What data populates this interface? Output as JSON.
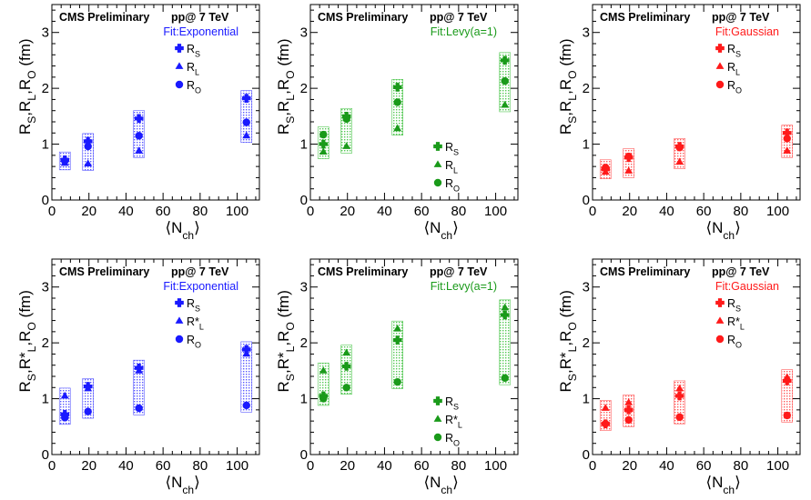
{
  "figure": {
    "label": "CMS Preliminary",
    "energy": "pp@ 7 TeV",
    "xlabel_main": "⟨N",
    "xlabel_sub": "ch",
    "xlabel_close": "⟩"
  },
  "chart_data": [
    {
      "type": "scatter",
      "fit_label": "Fit:Exponential",
      "color": "#1a1aff",
      "band_color": "#5b5bff",
      "x": [
        7,
        19.5,
        47,
        105
      ],
      "xlim": [
        0,
        112
      ],
      "ylim": [
        0,
        3.5
      ],
      "xticks": [
        0,
        20,
        40,
        60,
        80,
        100
      ],
      "yticks": [
        0,
        1,
        2,
        3
      ],
      "ylabel": "R_S,R_L,R_O (fm)",
      "legend_position": "top-right",
      "series": [
        {
          "name": "R_S",
          "marker": "cross",
          "values": [
            0.72,
            1.05,
            1.46,
            1.82
          ]
        },
        {
          "name": "R_L",
          "marker": "triangle",
          "values": [
            0.66,
            0.65,
            0.88,
            1.15
          ]
        },
        {
          "name": "R_O",
          "marker": "circle",
          "values": [
            0.7,
            0.96,
            1.15,
            1.39
          ]
        }
      ]
    },
    {
      "type": "scatter",
      "fit_label": "Fit:Levy(a=1)",
      "color": "#1a9a1a",
      "band_color": "#55c855",
      "x": [
        7,
        19.5,
        47,
        105
      ],
      "xlim": [
        0,
        112
      ],
      "ylim": [
        0,
        3.5
      ],
      "xticks": [
        0,
        20,
        40,
        60,
        80,
        100
      ],
      "yticks": [
        0,
        1,
        2,
        3
      ],
      "ylabel": "R_S,R_L,R_O (fm)",
      "legend_position": "bottom-right",
      "series": [
        {
          "name": "R_S",
          "marker": "cross",
          "values": [
            1.0,
            1.5,
            2.02,
            2.5
          ]
        },
        {
          "name": "R_L",
          "marker": "triangle",
          "values": [
            0.86,
            0.96,
            1.28,
            1.7
          ]
        },
        {
          "name": "R_O",
          "marker": "circle",
          "values": [
            1.17,
            1.45,
            1.75,
            2.13
          ]
        }
      ]
    },
    {
      "type": "scatter",
      "fit_label": "Fit:Gaussian",
      "color": "#ff1a1a",
      "band_color": "#ff5b5b",
      "x": [
        7,
        19.5,
        47,
        105
      ],
      "xlim": [
        0,
        112
      ],
      "ylim": [
        0,
        3.5
      ],
      "xticks": [
        0,
        20,
        40,
        60,
        80,
        100
      ],
      "yticks": [
        0,
        1,
        2,
        3
      ],
      "ylabel": "R_S,R_L,R_O (fm)",
      "legend_position": "top-right",
      "series": [
        {
          "name": "R_S",
          "marker": "cross",
          "values": [
            0.55,
            0.76,
            0.96,
            1.2
          ]
        },
        {
          "name": "R_L",
          "marker": "triangle",
          "values": [
            0.5,
            0.52,
            0.68,
            0.88
          ]
        },
        {
          "name": "R_O",
          "marker": "circle",
          "values": [
            0.58,
            0.78,
            0.94,
            1.1
          ]
        }
      ]
    },
    {
      "type": "scatter",
      "fit_label": "Fit:Exponential",
      "color": "#1a1aff",
      "band_color": "#5b5bff",
      "x": [
        7,
        19.5,
        47,
        105
      ],
      "xlim": [
        0,
        112
      ],
      "ylim": [
        0,
        3.5
      ],
      "xticks": [
        0,
        20,
        40,
        60,
        80,
        100
      ],
      "yticks": [
        0,
        1,
        2,
        3
      ],
      "ylabel": "R_S,R*_L,R_O (fm)",
      "legend_position": "top-right",
      "series": [
        {
          "name": "R_S",
          "marker": "cross",
          "values": [
            0.72,
            1.22,
            1.55,
            1.88
          ]
        },
        {
          "name": "R*_L",
          "marker": "triangle",
          "values": [
            1.05,
            1.18,
            1.5,
            1.8
          ]
        },
        {
          "name": "R_O",
          "marker": "circle",
          "values": [
            0.66,
            0.77,
            0.83,
            0.88
          ]
        }
      ]
    },
    {
      "type": "scatter",
      "fit_label": "Fit:Levy(a=1)",
      "color": "#1a9a1a",
      "band_color": "#55c855",
      "x": [
        7,
        19.5,
        47,
        105
      ],
      "xlim": [
        0,
        112
      ],
      "ylim": [
        0,
        3.5
      ],
      "xticks": [
        0,
        20,
        40,
        60,
        80,
        100
      ],
      "yticks": [
        0,
        1,
        2,
        3
      ],
      "ylabel": "R_S,R*_L,R_O (fm)",
      "legend_position": "bottom-right",
      "series": [
        {
          "name": "R_S",
          "marker": "cross",
          "values": [
            1.05,
            1.58,
            2.05,
            2.5
          ]
        },
        {
          "name": "R*_L",
          "marker": "triangle",
          "values": [
            1.5,
            1.82,
            2.25,
            2.63
          ]
        },
        {
          "name": "R_O",
          "marker": "circle",
          "values": [
            1.0,
            1.2,
            1.3,
            1.37
          ]
        }
      ]
    },
    {
      "type": "scatter",
      "fit_label": "Fit:Gaussian",
      "color": "#ff1a1a",
      "band_color": "#ff5b5b",
      "x": [
        7,
        19.5,
        47,
        105
      ],
      "xlim": [
        0,
        112
      ],
      "ylim": [
        0,
        3.5
      ],
      "xticks": [
        0,
        20,
        40,
        60,
        80,
        100
      ],
      "yticks": [
        0,
        1,
        2,
        3
      ],
      "ylabel": "R_S,R*_L,R_O (fm)",
      "legend_position": "top-right",
      "series": [
        {
          "name": "R_S",
          "marker": "cross",
          "values": [
            0.55,
            0.8,
            1.05,
            1.32
          ]
        },
        {
          "name": "R*_L",
          "marker": "triangle",
          "values": [
            0.83,
            0.93,
            1.18,
            1.38
          ]
        },
        {
          "name": "R_O",
          "marker": "circle",
          "values": [
            0.55,
            0.62,
            0.67,
            0.7
          ]
        }
      ]
    }
  ]
}
